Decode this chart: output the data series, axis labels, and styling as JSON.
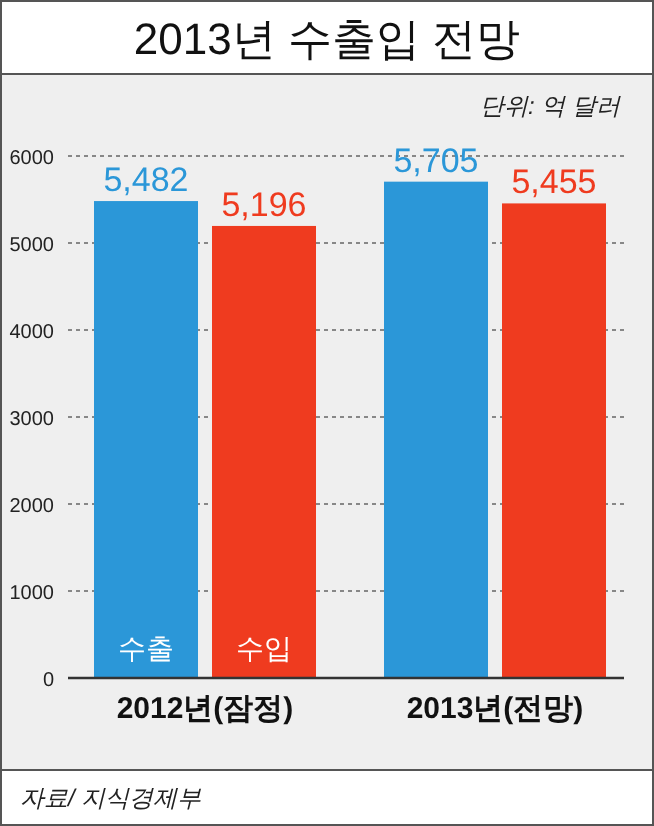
{
  "chart_data": {
    "type": "bar",
    "title": "2013년 수출입 전망",
    "annotations": [
      "단위: 억 달러",
      "자료/ 지식경제부"
    ],
    "categories": [
      "2012년(잠정)",
      "2013년(전망)"
    ],
    "series": [
      {
        "name": "수출",
        "color": "#2b97d8",
        "values": [
          5482,
          5705
        ],
        "value_labels": [
          "5,482",
          "5,705"
        ]
      },
      {
        "name": "수입",
        "color": "#ef3b1f",
        "values": [
          5196,
          5455
        ],
        "value_labels": [
          "5,196",
          "5,455"
        ]
      }
    ],
    "ylim": [
      0,
      6000
    ],
    "yticks": [
      0,
      1000,
      2000,
      3000,
      4000,
      5000,
      6000
    ],
    "grid": "y",
    "legend": false
  }
}
